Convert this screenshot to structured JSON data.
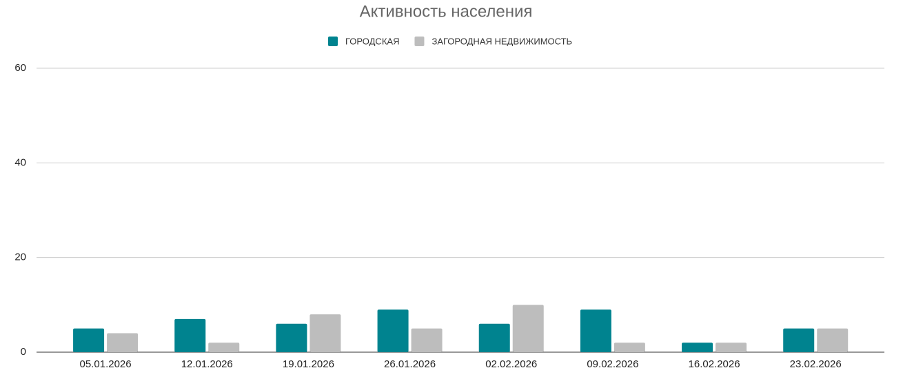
{
  "chart_data": {
    "type": "bar",
    "title": "Активность населения",
    "categories": [
      "05.01.2026",
      "12.01.2026",
      "19.01.2026",
      "26.01.2026",
      "02.02.2026",
      "09.02.2026",
      "16.02.2026",
      "23.02.2026"
    ],
    "series": [
      {
        "name": "ГОРОДСКАЯ",
        "color": "#00838f",
        "values": [
          5,
          7,
          6,
          9,
          6,
          9,
          2,
          5
        ]
      },
      {
        "name": "ЗАГОРОДНАЯ НЕДВИЖИМОСТЬ",
        "color": "#bdbdbd",
        "values": [
          4,
          2,
          8,
          5,
          10,
          2,
          2,
          5
        ]
      }
    ],
    "ylim": [
      0,
      60
    ],
    "yticks": [
      0,
      20,
      40,
      60
    ],
    "grid": true
  }
}
